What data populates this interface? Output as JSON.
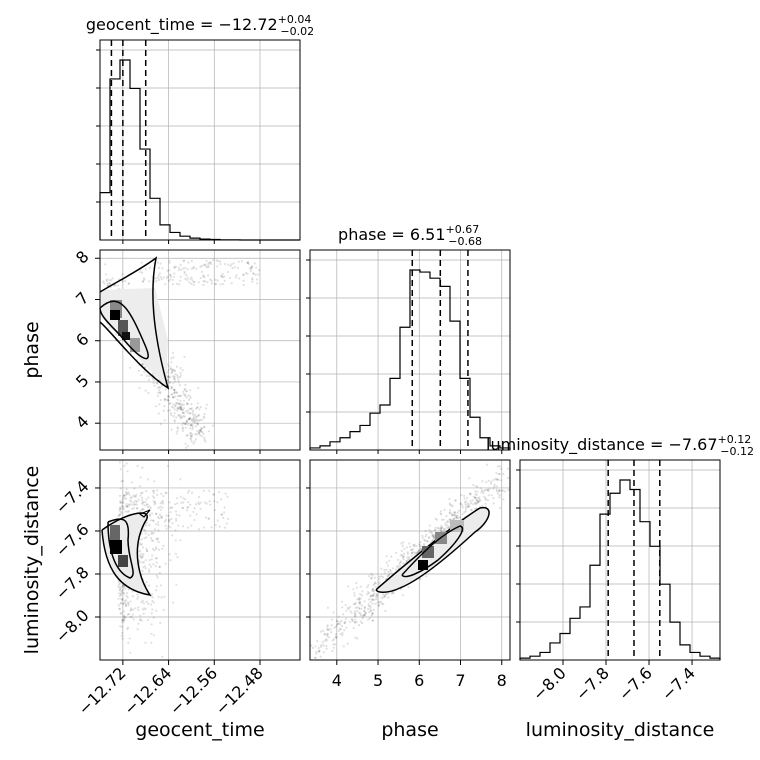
{
  "chart_data": {
    "type": "corner",
    "parameters": [
      {
        "key": "geocent_time",
        "label": "geocent_time",
        "title_prefix": "geocent_time = ",
        "median": "−12.72",
        "plus": "+0.04",
        "minus": "−0.02",
        "range": [
          -12.76,
          -12.41
        ],
        "ticks": [
          -12.72,
          -12.64,
          -12.56,
          -12.48
        ],
        "tick_labels": [
          "−12.72",
          "−12.64",
          "−12.56",
          "−12.48"
        ],
        "quantiles": [
          -12.74,
          -12.72,
          -12.68
        ]
      },
      {
        "key": "phase",
        "label": "phase",
        "title_prefix": "phase = ",
        "median": "6.51",
        "plus": "+0.67",
        "minus": "−0.68",
        "range": [
          3.35,
          8.2
        ],
        "ticks": [
          4,
          5,
          6,
          7,
          8
        ],
        "tick_labels": [
          "4",
          "5",
          "6",
          "7",
          "8"
        ],
        "quantiles": [
          5.83,
          6.51,
          7.18
        ]
      },
      {
        "key": "luminosity_distance",
        "label": "luminosity_distance",
        "title_prefix": "luminosity_distance = ",
        "median": "−7.67",
        "plus": "+0.12",
        "minus": "−0.12",
        "range": [
          -8.2,
          -7.27
        ],
        "ticks": [
          -8.0,
          -7.8,
          -7.6,
          -7.4
        ],
        "tick_labels": [
          "−8.0",
          "−7.8",
          "−7.6",
          "−7.4"
        ],
        "quantiles": [
          -7.79,
          -7.67,
          -7.55
        ]
      }
    ],
    "histograms": [
      {
        "param": "geocent_time",
        "bins": 20,
        "counts": [
          25,
          85,
          95,
          80,
          48,
          22,
          8,
          4,
          2,
          1,
          0.5,
          0.3,
          0.1,
          0.1,
          0,
          0,
          0,
          0,
          0,
          0
        ]
      },
      {
        "param": "phase",
        "bins": 20,
        "counts": [
          1,
          2,
          4,
          6,
          9,
          12,
          18,
          22,
          35,
          60,
          88,
          87,
          84,
          80,
          63,
          35,
          16,
          6,
          2,
          1
        ]
      },
      {
        "param": "luminosity_distance",
        "bins": 20,
        "counts": [
          1,
          2,
          4,
          9,
          14,
          22,
          28,
          50,
          77,
          88,
          95,
          90,
          73,
          60,
          40,
          20,
          8,
          4,
          2,
          1
        ]
      }
    ],
    "scatter_panels": [
      {
        "x": "geocent_time",
        "y": "phase"
      },
      {
        "x": "geocent_time",
        "y": "luminosity_distance"
      },
      {
        "x": "phase",
        "y": "luminosity_distance"
      }
    ],
    "grid": true,
    "colors": {
      "line": "#000000",
      "points": "#000000",
      "grid": "#b0b0b0"
    }
  }
}
